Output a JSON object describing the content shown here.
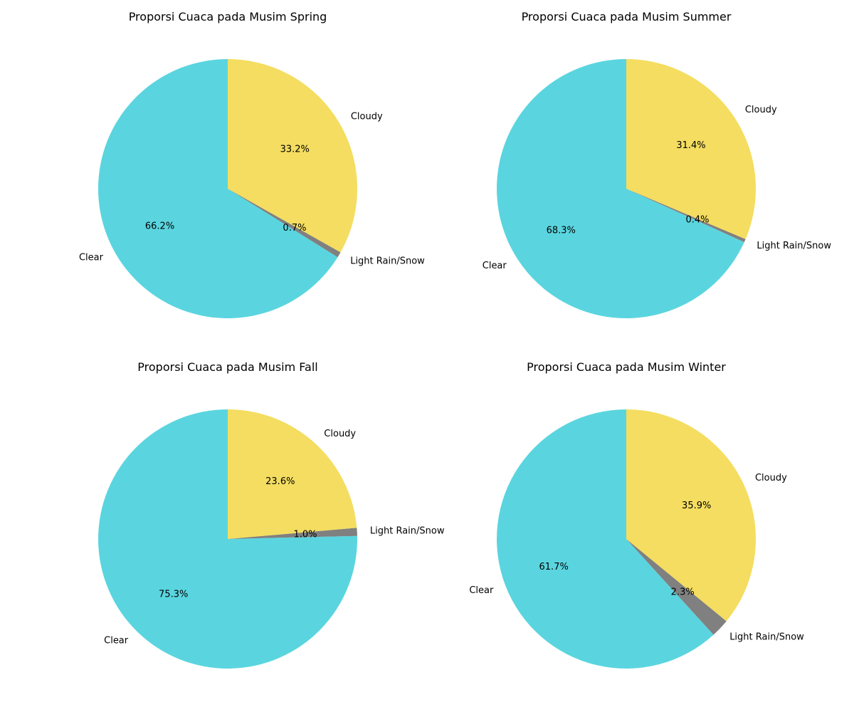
{
  "colors": {
    "Clear": "#5AD5DF",
    "Cloudy": "#F4DD60",
    "Light Rain/Snow": "#808080"
  },
  "chart_data": [
    {
      "type": "pie",
      "title": "Proporsi Cuaca pada Musim Spring",
      "labels": [
        "Clear",
        "Light Rain/Snow",
        "Cloudy"
      ],
      "values": [
        66.2,
        0.7,
        33.2
      ],
      "pct_labels": [
        "66.2%",
        "0.7%",
        "33.2%"
      ]
    },
    {
      "type": "pie",
      "title": "Proporsi Cuaca pada Musim Summer",
      "labels": [
        "Clear",
        "Light Rain/Snow",
        "Cloudy"
      ],
      "values": [
        68.3,
        0.4,
        31.4
      ],
      "pct_labels": [
        "68.3%",
        "0.4%",
        "31.4%"
      ]
    },
    {
      "type": "pie",
      "title": "Proporsi Cuaca pada Musim Fall",
      "labels": [
        "Clear",
        "Light Rain/Snow",
        "Cloudy"
      ],
      "values": [
        75.3,
        1.0,
        23.6
      ],
      "pct_labels": [
        "75.3%",
        "1.0%",
        "23.6%"
      ]
    },
    {
      "type": "pie",
      "title": "Proporsi Cuaca pada Musim Winter",
      "labels": [
        "Clear",
        "Light Rain/Snow",
        "Cloudy"
      ],
      "values": [
        61.7,
        2.3,
        35.9
      ],
      "pct_labels": [
        "61.7%",
        "2.3%",
        "35.9%"
      ]
    }
  ]
}
